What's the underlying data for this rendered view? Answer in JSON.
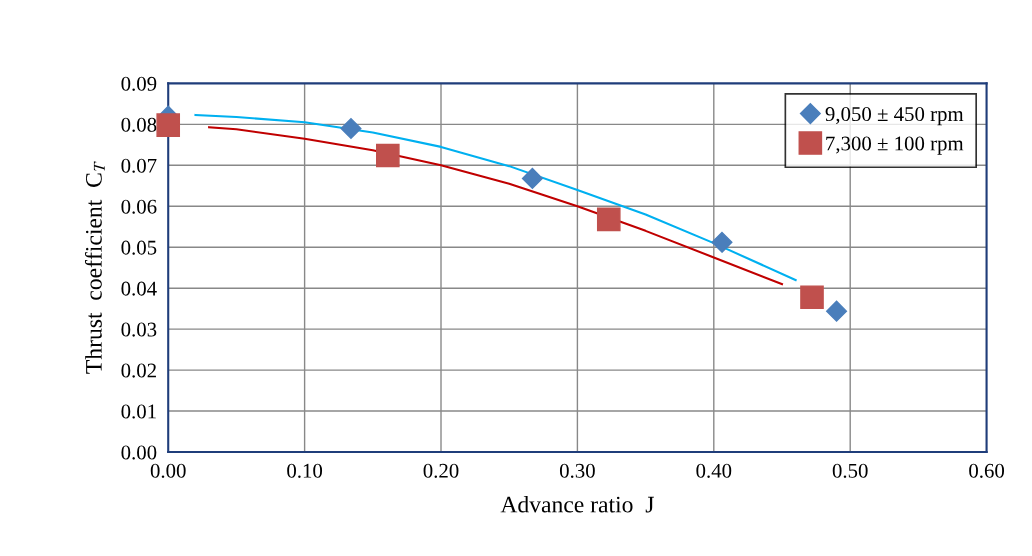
{
  "chart_data": {
    "type": "scatter",
    "xlabel": "Advance ratio  J",
    "ylabel": "Thrust  coefficient  C$_{T}$",
    "xlim": [
      0,
      0.6
    ],
    "ylim": [
      0,
      0.09
    ],
    "xticks": [
      {
        "value": 0,
        "label": "0.00"
      },
      {
        "value": 0.1,
        "label": "0.10"
      },
      {
        "value": 0.2,
        "label": "0.20"
      },
      {
        "value": 0.3,
        "label": "0.30"
      },
      {
        "value": 0.4,
        "label": "0.40"
      },
      {
        "value": 0.5,
        "label": "0.50"
      },
      {
        "value": 0.6,
        "label": "0.60"
      }
    ],
    "yticks": [
      {
        "value": 0,
        "label": "0.00"
      },
      {
        "value": 0.01,
        "label": "0.01"
      },
      {
        "value": 0.02,
        "label": "0.02"
      },
      {
        "value": 0.03,
        "label": "0.03"
      },
      {
        "value": 0.04,
        "label": "0.04"
      },
      {
        "value": 0.05,
        "label": "0.05"
      },
      {
        "value": 0.06,
        "label": "0.06"
      },
      {
        "value": 0.07,
        "label": "0.07"
      },
      {
        "value": 0.08,
        "label": "0.08"
      },
      {
        "value": 0.09,
        "label": "0.09"
      }
    ],
    "grid": true,
    "legend": "top right",
    "series": [
      {
        "type": "line",
        "color": "#00b0f0",
        "marker": "none",
        "x": [
          0.02,
          0.05,
          0.1,
          0.15,
          0.2,
          0.25,
          0.3,
          0.35,
          0.4,
          0.46
        ],
        "values": [
          0.0823,
          0.0818,
          0.0805,
          0.078,
          0.0745,
          0.0698,
          0.064,
          0.058,
          0.051,
          0.042
        ]
      },
      {
        "type": "line",
        "color": "#c00000",
        "marker": "none",
        "x": [
          0.03,
          0.05,
          0.1,
          0.15,
          0.2,
          0.25,
          0.3,
          0.35,
          0.4,
          0.45
        ],
        "values": [
          0.0793,
          0.0788,
          0.0765,
          0.0737,
          0.07,
          0.0655,
          0.06,
          0.054,
          0.0475,
          0.041
        ]
      },
      {
        "name": "9,050 ± 450 rpm",
        "color": "#4a7ebb",
        "marker": "diamond",
        "x": [
          0,
          0.134,
          0.267,
          0.406,
          0.49
        ],
        "values": [
          0.082,
          0.079,
          0.0668,
          0.0512,
          0.0344
        ]
      },
      {
        "name": "7,300 ± 100 rpm",
        "color": "#c0504d",
        "marker": "square",
        "x": [
          0,
          0.161,
          0.323,
          0.472
        ],
        "values": [
          0.0798,
          0.0724,
          0.0568,
          0.0378
        ]
      }
    ]
  }
}
